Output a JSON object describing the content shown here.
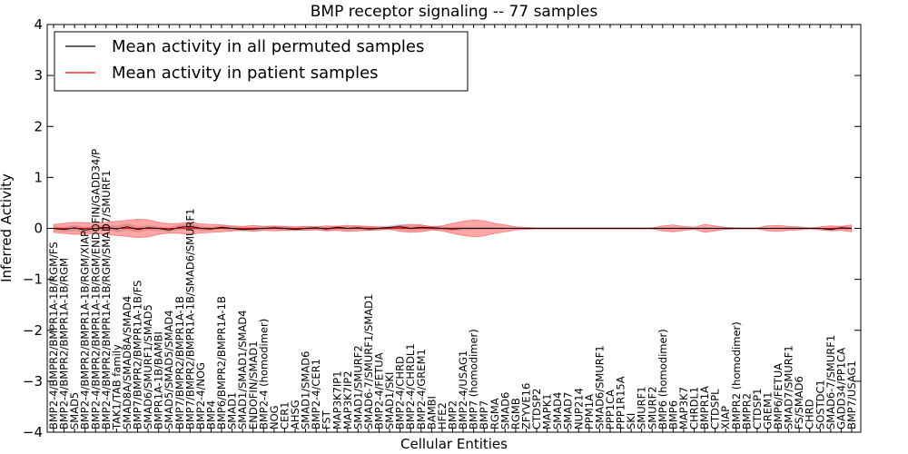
{
  "chart_data": {
    "type": "line",
    "title": "BMP receptor signaling -- 77 samples",
    "xlabel": "Cellular Entities",
    "ylabel": "Inferred Activity",
    "ylim": [
      -4,
      4
    ],
    "yticks": [
      -4,
      -3,
      -2,
      -1,
      0,
      1,
      2,
      3,
      4
    ],
    "grid": false,
    "legend_position": "top-left",
    "legend": [
      {
        "label": "Mean activity in all permuted samples",
        "color": "#000000"
      },
      {
        "label": "Mean activity in patient samples",
        "color": "#ff0000"
      }
    ],
    "categories": [
      "BMP2-4/BMPR2/BMPR1A-1B/RGM/FS",
      "BMP2-4/BMPR2/BMPR1A-1B/RGM",
      "SMAD5",
      "BMP2-4/BMPR2/BMPR1A-1B/RGM/XIAP",
      "BMP2-4/BMPR2/BMPR1A-1B/RGM/ENDOFIN/GADD34/P",
      "BMP2-4/BMPR2/BMPR1A-1B/RGM/SMAD7/SMURF1",
      "TAK1/TAB family",
      "SMAD8A/SMAD8A/SMAD4",
      "BMP7/BMPR2/BMPR1A-1B/FS",
      "SMAD6/SMURF1/SMAD5",
      "BMPR1A-1B/BAMBI",
      "SMAD5/SMAD5/SMAD4",
      "BMP7/BMPR2/BMPR1A-1B",
      "BMP7/BMPR2/BMPR1A-1B/SMAD6/SMURF1",
      "BMP2-4/NOG",
      "BMP4",
      "BMP6/BMPR2/BMPR1A-1B",
      "SMAD1",
      "SMAD1/SMAD1/SMAD4",
      "ENDOFIN/SMAD1",
      "BMP2-4 (homodimer)",
      "NOG",
      "CER1",
      "AHSG",
      "SMAD1/SMAD6",
      "BMP2-4/CER1",
      "FST",
      "MAP3K7IP1",
      "MAP3K7IP2",
      "SMAD1/SMURF2",
      "SMAD6-7/SMURF1/SMAD1",
      "BMP2-4/FETUA",
      "SMAD1/SKI",
      "BMP2-4/CHRD",
      "BMP2-4/CHRDL1",
      "BMP2-4/GREM1",
      "BAMBI",
      "HFE2",
      "BMP2",
      "BMP2-4/USAG1",
      "BMP7 (homodimer)",
      "BMP7",
      "RGMA",
      "SMAD6",
      "RGMB",
      "ZFYVE16",
      "CTDSP2",
      "MAPK1",
      "SMAD4",
      "SMAD7",
      "NUP214",
      "PPM1A",
      "SMAD6/SMURF1",
      "PPP1CA",
      "PPP1R15A",
      "SKI",
      "SMURF1",
      "SMURF2",
      "BMP6 (homodimer)",
      "BMP6",
      "MAP3K7",
      "CHRDL1",
      "BMPR1A",
      "CTDSPL",
      "XIAP",
      "BMPR2 (homodimer)",
      "BMPR2",
      "CTDSP1",
      "GREM1",
      "BMP6/FETUA",
      "SMAD7/SMURF1",
      "FS/SMAD6",
      "CHRD",
      "SOSTDC1",
      "SMAD6-7/SMURF1",
      "GADD34/PP1CA",
      "BMP7/USAG1"
    ],
    "series": [
      {
        "name": "Mean activity in all permuted samples",
        "color": "#000000",
        "values": [
          0.0,
          -0.02,
          0.01,
          -0.03,
          0.0,
          0.02,
          -0.01,
          0.03,
          -0.02,
          0.01,
          0.0,
          -0.03,
          0.02,
          0.04,
          0.0,
          -0.01,
          0.02,
          0.0,
          -0.02,
          -0.01,
          0.0,
          0.01,
          0.0,
          -0.02,
          0.0,
          0.01,
          -0.01,
          0.02,
          0.0,
          0.01,
          -0.01,
          0.0,
          0.02,
          0.03,
          0.0,
          0.02,
          0.01,
          0.0,
          -0.01,
          0.0,
          0.0,
          0.0,
          0.0,
          0.0,
          0.0,
          0.0,
          0.0,
          0.0,
          0.0,
          0.0,
          0.0,
          0.0,
          0.0,
          0.0,
          0.0,
          0.0,
          0.0,
          0.0,
          0.0,
          0.0,
          0.0,
          0.0,
          0.0,
          0.0,
          0.0,
          0.0,
          0.0,
          0.0,
          0.0,
          0.0,
          0.0,
          0.0,
          0.0,
          0.0,
          -0.02,
          0.01,
          0.0
        ]
      },
      {
        "name": "Mean activity in patient samples",
        "color": "#ff0000",
        "values": [
          0.0,
          0.0,
          0.0,
          0.0,
          0.0,
          0.0,
          0.0,
          0.0,
          0.0,
          0.0,
          0.0,
          0.0,
          0.0,
          0.0,
          0.0,
          0.0,
          0.0,
          0.0,
          0.0,
          0.0,
          0.0,
          0.0,
          0.0,
          0.0,
          0.0,
          0.0,
          0.0,
          0.0,
          0.0,
          0.0,
          0.0,
          0.0,
          0.0,
          0.0,
          0.0,
          0.0,
          0.0,
          0.0,
          0.0,
          0.0,
          0.0,
          0.0,
          0.0,
          0.0,
          0.0,
          0.0,
          0.0,
          0.0,
          0.0,
          0.0,
          0.0,
          0.0,
          0.0,
          0.0,
          0.0,
          0.0,
          0.0,
          0.0,
          0.0,
          0.0,
          0.0,
          0.0,
          0.0,
          0.0,
          0.0,
          0.0,
          0.0,
          0.0,
          0.0,
          0.0,
          0.0,
          0.0,
          0.0,
          0.0,
          0.0,
          0.0,
          0.0
        ]
      }
    ],
    "patient_band_halfwidth": [
      0.08,
      0.1,
      0.12,
      0.11,
      0.1,
      0.12,
      0.14,
      0.16,
      0.18,
      0.17,
      0.12,
      0.09,
      0.1,
      0.12,
      0.09,
      0.08,
      0.07,
      0.05,
      0.04,
      0.06,
      0.04,
      0.05,
      0.04,
      0.03,
      0.04,
      0.03,
      0.05,
      0.04,
      0.06,
      0.05,
      0.04,
      0.03,
      0.02,
      0.06,
      0.08,
      0.07,
      0.03,
      0.05,
      0.1,
      0.14,
      0.17,
      0.15,
      0.1,
      0.07,
      0.03,
      0.02,
      0.01,
      0.01,
      0.01,
      0.01,
      0.01,
      0.01,
      0.01,
      0.01,
      0.01,
      0.01,
      0.01,
      0.01,
      0.05,
      0.07,
      0.04,
      0.02,
      0.08,
      0.05,
      0.02,
      0.01,
      0.01,
      0.01,
      0.05,
      0.06,
      0.04,
      0.03,
      0.01,
      0.03,
      0.05,
      0.04,
      0.07
    ],
    "permuted_band_halfwidth": [
      0.05,
      0.05,
      0.06,
      0.06,
      0.05,
      0.05,
      0.06,
      0.07,
      0.06,
      0.05,
      0.05,
      0.04,
      0.05,
      0.06,
      0.05,
      0.04,
      0.04,
      0.04,
      0.04,
      0.04,
      0.03,
      0.03,
      0.04,
      0.04,
      0.03,
      0.03,
      0.04,
      0.04,
      0.04,
      0.04,
      0.04,
      0.04,
      0.04,
      0.05,
      0.05,
      0.05,
      0.04,
      0.04,
      0.04,
      0.04,
      0.03,
      0.03,
      0.03,
      0.02,
      0.02,
      0.02,
      0.02,
      0.02,
      0.02,
      0.02,
      0.02,
      0.02,
      0.02,
      0.02,
      0.02,
      0.02,
      0.02,
      0.02,
      0.02,
      0.02,
      0.02,
      0.02,
      0.02,
      0.02,
      0.02,
      0.02,
      0.02,
      0.02,
      0.02,
      0.02,
      0.02,
      0.02,
      0.02,
      0.02,
      0.03,
      0.03,
      0.03
    ]
  }
}
